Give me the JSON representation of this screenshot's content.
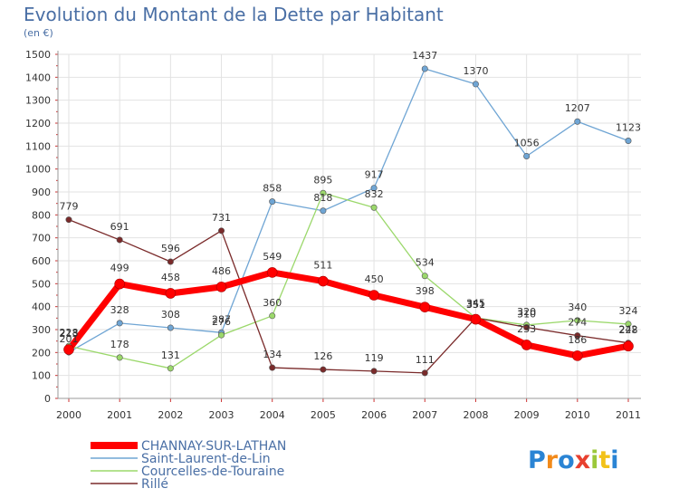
{
  "chart_data": {
    "type": "line",
    "title": "Evolution du Montant de la Dette par Habitant",
    "subtitle": "(en €)",
    "x": [
      "2000",
      "2001",
      "2002",
      "2003",
      "2004",
      "2005",
      "2006",
      "2007",
      "2008",
      "2009",
      "2010",
      "2011"
    ],
    "ylim": [
      0,
      1500
    ],
    "yticks": [
      0,
      100,
      200,
      300,
      400,
      500,
      600,
      700,
      800,
      900,
      1000,
      1100,
      1200,
      1300,
      1400,
      1500
    ],
    "grid": true,
    "legend_position": "bottom-left",
    "series": [
      {
        "name": "CHANNAY-SUR-LATHAN",
        "color": "#ff0000",
        "values": [
          213,
          499,
          458,
          486,
          549,
          511,
          450,
          398,
          345,
          233,
          186,
          228
        ]
      },
      {
        "name": "Saint-Laurent-de-Lin",
        "color": "#6fa5d4",
        "values": [
          201,
          328,
          308,
          287,
          858,
          818,
          917,
          1437,
          1370,
          1056,
          1207,
          1123
        ]
      },
      {
        "name": "Courcelles-de-Touraine",
        "color": "#9bd86b",
        "values": [
          228,
          178,
          131,
          276,
          360,
          895,
          832,
          534,
          351,
          320,
          340,
          324
        ]
      },
      {
        "name": "Rillé",
        "color": "#7a2a2a",
        "values": [
          779,
          691,
          596,
          731,
          134,
          126,
          119,
          111,
          351,
          310,
          274,
          242
        ]
      }
    ]
  },
  "branding": {
    "logo_text": "Proxiti",
    "logo_colors": [
      "#2a84d4",
      "#f28a1a",
      "#2a84d4",
      "#e8402f",
      "#9bc83a",
      "#f2c21a",
      "#2a84d4"
    ]
  }
}
